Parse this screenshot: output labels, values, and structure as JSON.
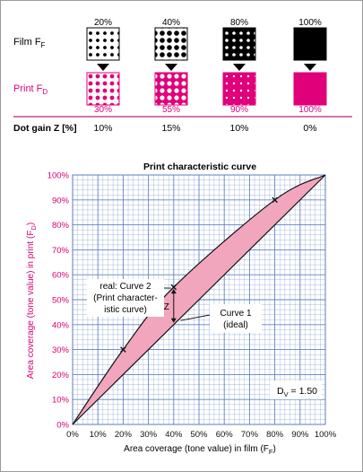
{
  "dot_gain": {
    "film_label": "Film F",
    "film_sub": "F",
    "print_label": "Print F",
    "print_sub": "D",
    "row_label": "Dot gain Z [%]",
    "film_values": [
      "20%",
      "40%",
      "80%",
      "100%"
    ],
    "print_values": [
      "30%",
      "55%",
      "90%",
      "100%"
    ],
    "gains": [
      "10%",
      "15%",
      "10%",
      "0%"
    ],
    "film_coverage": [
      20,
      40,
      80,
      100
    ],
    "print_coverage": [
      30,
      55,
      90,
      100
    ],
    "colors": {
      "film": "#000000",
      "print": "#e0007a",
      "rule": "#b0267a"
    }
  },
  "chart_data": {
    "type": "area",
    "title": "Print characteristic curve",
    "xlabel_main": "Area coverage (tone value) in film (F",
    "xlabel_sub": "F",
    "xlabel_end": ")",
    "ylabel_main": "Area coverage (tone value) in print (F",
    "ylabel_sub": "D",
    "ylabel_end": ")",
    "xlim": [
      0,
      100
    ],
    "ylim": [
      0,
      100
    ],
    "x_ticks": [
      "0%",
      "10%",
      "20%",
      "30%",
      "40%",
      "50%",
      "60%",
      "70%",
      "80%",
      "90%",
      "100%"
    ],
    "y_ticks": [
      "0%",
      "10%",
      "20%",
      "30%",
      "40%",
      "50%",
      "60%",
      "70%",
      "80%",
      "90%",
      "100%"
    ],
    "grid": true,
    "series": [
      {
        "name": "Curve 1 (ideal)",
        "x": [
          0,
          100
        ],
        "y": [
          0,
          100
        ]
      },
      {
        "name": "real: Curve 2 (Print characteristic curve)",
        "x": [
          0,
          20,
          40,
          80,
          100
        ],
        "y": [
          0,
          30,
          55,
          90,
          100
        ]
      }
    ],
    "markers": [
      {
        "x": 20,
        "y": 30
      },
      {
        "x": 40,
        "y": 55
      },
      {
        "x": 80,
        "y": 90
      }
    ],
    "annotations": {
      "real_lines": [
        "real: Curve 2",
        "(Print character-",
        "istic curve)"
      ],
      "ideal_lines": [
        "Curve 1",
        "(ideal)"
      ],
      "z_label": "Z",
      "dv_main": "D",
      "dv_sub": "V",
      "dv_value": " = 1.50"
    },
    "colors": {
      "fill": "#f2a6bd",
      "grid": "#5b7ec2",
      "axis_text": "#d6006f",
      "text": "#111111"
    }
  }
}
